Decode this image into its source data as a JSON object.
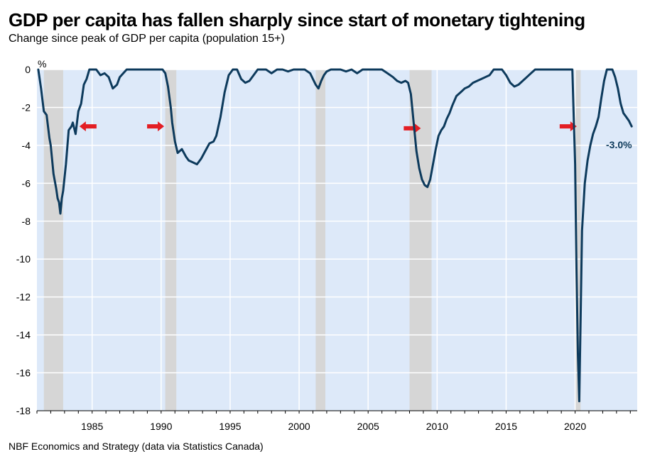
{
  "chart_data": {
    "type": "line",
    "title": "GDP per capita has fallen sharply since start of monetary tightening",
    "subtitle": "Change since peak of GDP per capita (population 15+)",
    "ylabel": "%",
    "xlabel": "",
    "ylim": [
      -18,
      0
    ],
    "xlim": [
      1981.0,
      2024.5
    ],
    "grid": "horizontal and vertical",
    "yticks": [
      0,
      -2,
      -4,
      -6,
      -8,
      -10,
      -12,
      -14,
      -16,
      -18
    ],
    "xticks": [
      1985,
      1990,
      1995,
      2000,
      2005,
      2010,
      2015,
      2020
    ],
    "source": "NBF Economics and Strategy (data via Statistics Canada)",
    "recessions": [
      [
        1981.5,
        1982.9
      ],
      [
        1990.3,
        1991.1
      ],
      [
        2001.2,
        2001.9
      ],
      [
        2008.0,
        2009.6
      ],
      [
        2020.0,
        2020.4
      ]
    ],
    "arrows": [
      {
        "x": 1984.7,
        "y": -3.0,
        "direction": "left"
      },
      {
        "x": 1989.6,
        "y": -3.0,
        "direction": "right"
      },
      {
        "x": 2008.2,
        "y": -3.1,
        "direction": "right"
      },
      {
        "x": 2019.5,
        "y": -3.0,
        "direction": "right"
      }
    ],
    "last_value_label": "-3.0%",
    "colors": {
      "line": "#0d3a5c",
      "background": "#dde9f9",
      "recession": "#d6d6d6",
      "arrow": "#e31e24",
      "grid": "#ffffff"
    },
    "series": [
      {
        "name": "Change since peak of GDP per capita",
        "x": [
          1981.1,
          1981.3,
          1981.5,
          1981.7,
          1981.9,
          1982.0,
          1982.2,
          1982.4,
          1982.5,
          1982.6,
          1982.7,
          1982.8,
          1982.9,
          1983.1,
          1983.3,
          1983.5,
          1983.6,
          1983.8,
          1984.0,
          1984.2,
          1984.4,
          1984.6,
          1984.8,
          1985.0,
          1985.3,
          1985.6,
          1985.9,
          1986.2,
          1986.5,
          1986.8,
          1987.0,
          1987.5,
          1988.0,
          1988.5,
          1989.0,
          1989.4,
          1989.8,
          1990.1,
          1990.3,
          1990.5,
          1990.7,
          1990.8,
          1991.0,
          1991.2,
          1991.5,
          1991.8,
          1992.0,
          1992.3,
          1992.6,
          1992.9,
          1993.2,
          1993.5,
          1993.8,
          1994.0,
          1994.3,
          1994.6,
          1994.9,
          1995.2,
          1995.5,
          1995.8,
          1996.1,
          1996.4,
          1996.7,
          1997.0,
          1997.3,
          1997.6,
          1998.0,
          1998.4,
          1998.8,
          1999.2,
          1999.6,
          2000.0,
          2000.4,
          2000.8,
          2001.0,
          2001.2,
          2001.4,
          2001.6,
          2001.8,
          2002.0,
          2002.3,
          2002.6,
          2003.0,
          2003.4,
          2003.8,
          2004.2,
          2004.6,
          2005.0,
          2005.5,
          2006.0,
          2006.4,
          2006.8,
          2007.1,
          2007.4,
          2007.7,
          2007.9,
          2008.1,
          2008.3,
          2008.5,
          2008.7,
          2008.9,
          2009.1,
          2009.3,
          2009.5,
          2009.7,
          2009.9,
          2010.1,
          2010.3,
          2010.5,
          2010.7,
          2010.9,
          2011.1,
          2011.4,
          2011.7,
          2012.0,
          2012.3,
          2012.6,
          2012.9,
          2013.2,
          2013.5,
          2013.8,
          2014.1,
          2014.4,
          2014.7,
          2015.0,
          2015.3,
          2015.6,
          2015.9,
          2016.2,
          2016.5,
          2016.8,
          2017.1,
          2017.4,
          2017.8,
          2018.2,
          2018.6,
          2019.0,
          2019.4,
          2019.8,
          2020.0,
          2020.1,
          2020.2,
          2020.3,
          2020.4,
          2020.5,
          2020.7,
          2020.9,
          2021.1,
          2021.3,
          2021.5,
          2021.7,
          2021.9,
          2022.1,
          2022.3,
          2022.5,
          2022.7,
          2022.9,
          2023.1,
          2023.3,
          2023.5,
          2023.7,
          2023.9,
          2024.1
        ],
        "values": [
          0,
          -1.0,
          -2.2,
          -2.4,
          -3.6,
          -4.0,
          -5.5,
          -6.3,
          -6.8,
          -7.0,
          -7.6,
          -6.8,
          -6.4,
          -5.0,
          -3.2,
          -3.0,
          -2.8,
          -3.4,
          -2.2,
          -1.8,
          -0.8,
          -0.5,
          0,
          0,
          0,
          -0.3,
          -0.2,
          -0.4,
          -1.0,
          -0.8,
          -0.4,
          0,
          0,
          0,
          0,
          0,
          0,
          0,
          -0.2,
          -0.9,
          -2.0,
          -2.8,
          -3.8,
          -4.4,
          -4.2,
          -4.6,
          -4.8,
          -4.9,
          -5.0,
          -4.7,
          -4.3,
          -3.9,
          -3.8,
          -3.5,
          -2.5,
          -1.2,
          -0.3,
          0,
          0,
          -0.5,
          -0.7,
          -0.6,
          -0.3,
          0,
          0,
          0,
          -0.2,
          0,
          0,
          -0.1,
          0,
          0,
          0,
          -0.2,
          -0.5,
          -0.8,
          -1.0,
          -0.6,
          -0.3,
          -0.1,
          0,
          0,
          0,
          -0.1,
          0,
          -0.2,
          0,
          0,
          0,
          0,
          -0.2,
          -0.4,
          -0.6,
          -0.7,
          -0.6,
          -0.7,
          -1.3,
          -2.8,
          -4.3,
          -5.2,
          -5.8,
          -6.1,
          -6.2,
          -5.8,
          -5.0,
          -4.2,
          -3.5,
          -3.2,
          -3.0,
          -2.6,
          -2.3,
          -1.9,
          -1.4,
          -1.2,
          -1.0,
          -0.9,
          -0.7,
          -0.6,
          -0.5,
          -0.4,
          -0.3,
          0,
          0,
          0,
          -0.3,
          -0.7,
          -0.9,
          -0.8,
          -0.6,
          -0.4,
          -0.2,
          0,
          0,
          0,
          0,
          0,
          0,
          0,
          0,
          -5.0,
          -10.5,
          -15.0,
          -17.5,
          -13.0,
          -8.5,
          -6.0,
          -4.8,
          -4.0,
          -3.4,
          -3.0,
          -2.5,
          -1.5,
          -0.6,
          0,
          0,
          0,
          -0.4,
          -1.0,
          -1.8,
          -2.3,
          -2.5,
          -2.7,
          -3.0
        ]
      }
    ]
  }
}
